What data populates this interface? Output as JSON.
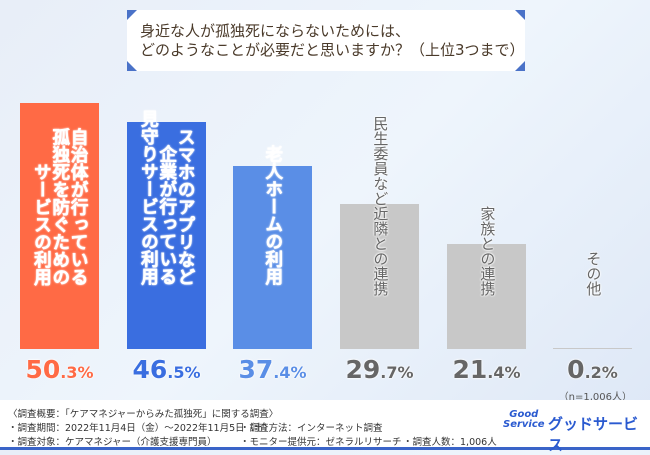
{
  "title": {
    "line1": "身近な人が孤独死にならないためには、",
    "line2": "どのようなことが必要だと思いますか？（上位3つまで）"
  },
  "chart_data": {
    "type": "bar",
    "title": "身近な人が孤独死にならないためには、どのようなことが必要だと思いますか？（上位3つまで）",
    "categories": [
      "自治体が行っている孤独死を防ぐためのサービスの利用",
      "スマホのアプリなど企業が行っている見守りサービスの利用",
      "老人ホームの利用",
      "民生委員など近隣との連携",
      "家族との連携",
      "その他"
    ],
    "label_lines": [
      [
        "自治体が行っている",
        "孤独死を防ぐための",
        "サービスの利用"
      ],
      [
        "スマホのアプリなど",
        "企業が行っている",
        "見守りサービスの利用"
      ],
      [
        "老人ホームの利用"
      ],
      [
        "民生委員など近隣との連携"
      ],
      [
        "家族との連携"
      ],
      [
        "その他"
      ]
    ],
    "values": [
      50.3,
      46.5,
      37.4,
      29.7,
      21.4,
      0.2
    ],
    "value_labels": [
      "50.3%",
      "46.5%",
      "37.4%",
      "29.7%",
      "21.4%",
      "0.2%"
    ],
    "colors": [
      "#ff6a45",
      "#3a6ee0",
      "#5a8ee6",
      "#c8c8c8",
      "#c8c8c8",
      "#c8c8c8"
    ],
    "label_colors": [
      "#ff6a45",
      "#3a6ee0",
      "#5a8ee6",
      "#666666",
      "#666666",
      "#666666"
    ],
    "ylim": [
      0,
      55
    ],
    "grid": false,
    "note": "（n=1,006人）"
  },
  "footer": {
    "summary": "〈調査概要：「ケアマネジャーからみた孤独死」に関する調査〉",
    "period": "・調査期間：2022年11月4日（金）〜2022年11月5日（土）",
    "method": "・調査方法：インターネット調査",
    "target": "・調査対象：ケアマネジャー（介護支援専門員）",
    "provider": "・モニター提供元：ゼネラルリサーチ",
    "count": "・調査人数：1,006人",
    "logo_en_1": "Good",
    "logo_en_2": "Service",
    "logo_jp": "グッドサービス"
  }
}
